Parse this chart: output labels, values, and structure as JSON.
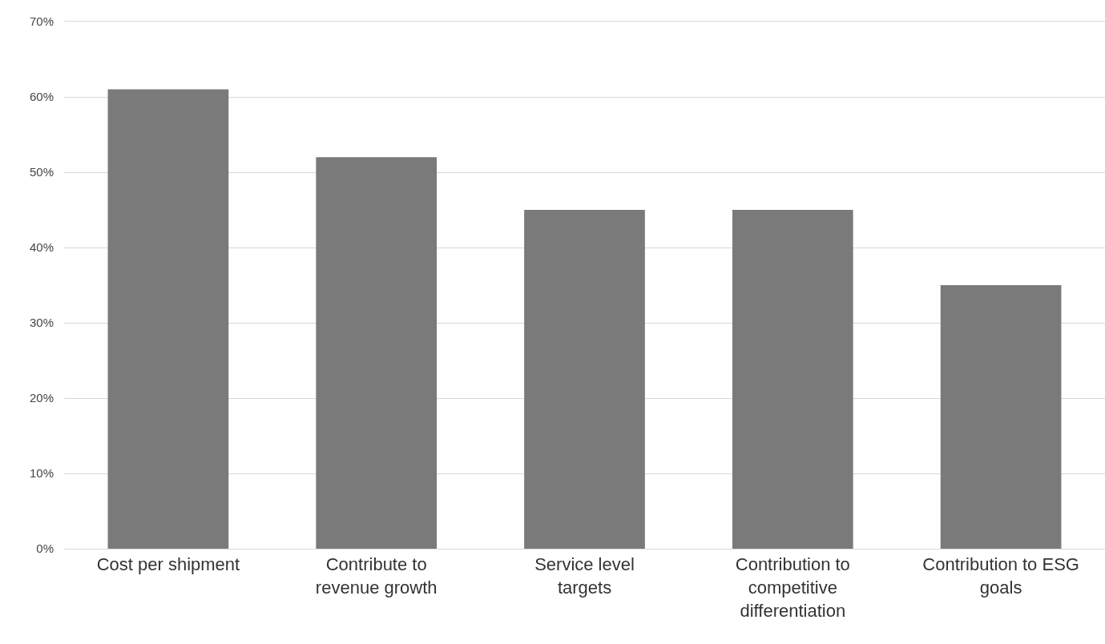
{
  "chart_data": {
    "type": "bar",
    "categories": [
      "Cost per shipment",
      "Contribute to revenue growth",
      "Service level targets",
      "Contribution to competitive differentiation",
      "Contribution to ESG goals"
    ],
    "values": [
      61,
      52,
      45,
      45,
      35
    ],
    "color": "#7a7a7a",
    "ylim": [
      0,
      70
    ],
    "yticks": [
      {
        "value": 0,
        "label": "0%"
      },
      {
        "value": 10,
        "label": "10%"
      },
      {
        "value": 20,
        "label": "20%"
      },
      {
        "value": 30,
        "label": "30%"
      },
      {
        "value": 40,
        "label": "40%"
      },
      {
        "value": 50,
        "label": "50%"
      },
      {
        "value": 60,
        "label": "60%"
      },
      {
        "value": 70,
        "label": "70%"
      }
    ],
    "grid": "y"
  }
}
